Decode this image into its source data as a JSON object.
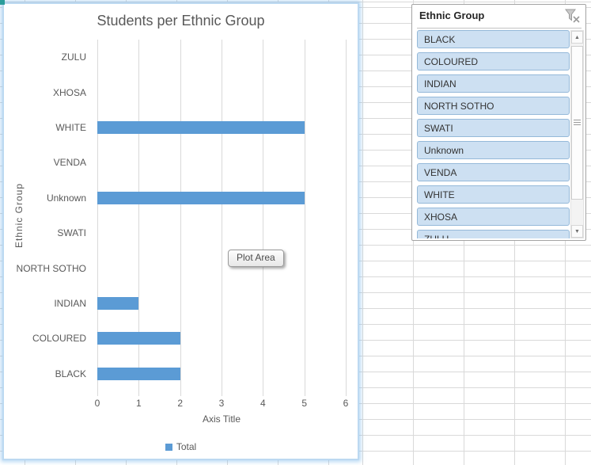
{
  "chart": {
    "title": "Students per Ethnic Group",
    "x_axis_title": "Axis Title",
    "y_axis_title": "Ethnic Group",
    "x_ticks": [
      "0",
      "1",
      "2",
      "3",
      "4",
      "5",
      "6"
    ],
    "legend_label": "Total",
    "plot_area_tooltip": "Plot Area"
  },
  "chart_data": {
    "type": "bar",
    "orientation": "horizontal",
    "title": "Students per Ethnic Group",
    "xlabel": "Axis Title",
    "ylabel": "Ethnic Group",
    "categories": [
      "ZULU",
      "XHOSA",
      "WHITE",
      "VENDA",
      "Unknown",
      "SWATI",
      "NORTH SOTHO",
      "INDIAN",
      "COLOURED",
      "BLACK"
    ],
    "series": [
      {
        "name": "Total",
        "values": [
          0,
          0,
          5,
          0,
          5,
          0,
          0,
          1,
          2,
          2
        ]
      }
    ],
    "xlim": [
      0,
      6
    ],
    "grid": true,
    "legend_position": "bottom"
  },
  "slicer": {
    "title": "Ethnic Group",
    "clear_filter_icon": "funnel-clear-icon",
    "items": [
      "BLACK",
      "COLOURED",
      "INDIAN",
      "NORTH SOTHO",
      "SWATI",
      "Unknown",
      "VENDA",
      "WHITE",
      "XHOSA",
      "ZULU"
    ],
    "scrollbar": {
      "up_arrow": "▲",
      "down_arrow": "▼"
    }
  },
  "colors": {
    "bar": "#5B9BD5",
    "slicer_item_bg": "#CDE0F2",
    "grid_line": "#D9D9D9",
    "axis_text": "#595959"
  }
}
